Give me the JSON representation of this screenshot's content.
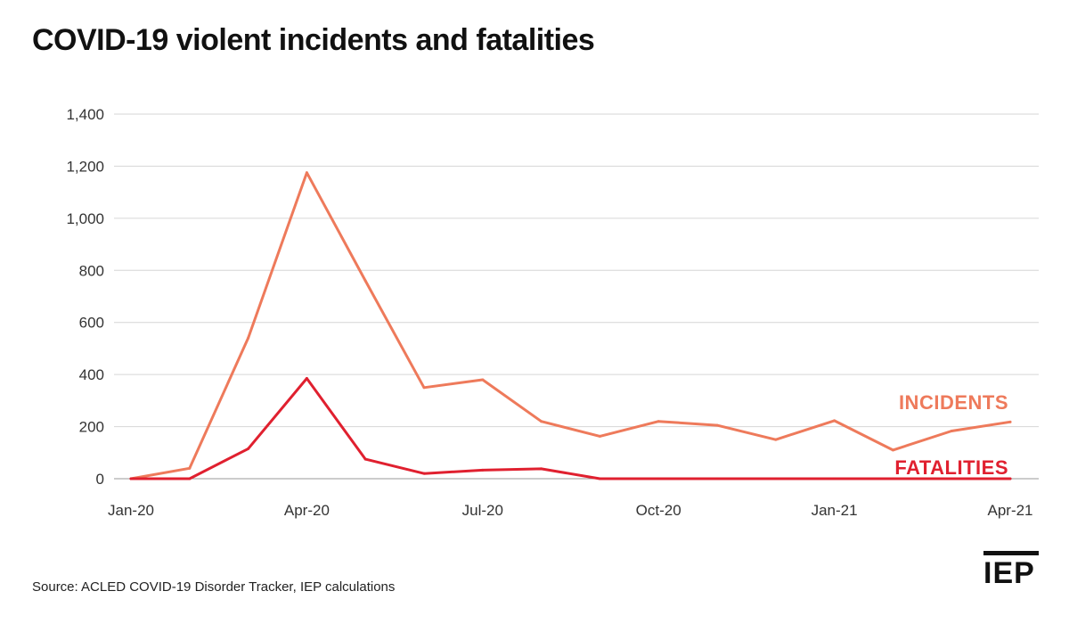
{
  "title": "COVID-19 violent incidents and fatalities",
  "source": "Source: ACLED COVID-19 Disorder Tracker, IEP calculations",
  "logo": "IEP",
  "chart_data": {
    "type": "line",
    "title": "COVID-19 violent incidents and fatalities",
    "xlabel": "",
    "ylabel": "",
    "ylim": [
      0,
      1400
    ],
    "yticks": [
      0,
      200,
      400,
      600,
      800,
      1000,
      1200,
      1400
    ],
    "ytick_labels": [
      "0",
      "200",
      "400",
      "600",
      "800",
      "1,000",
      "1,200",
      "1,400"
    ],
    "x": [
      "Jan-20",
      "Feb-20",
      "Mar-20",
      "Apr-20",
      "May-20",
      "Jun-20",
      "Jul-20",
      "Aug-20",
      "Sep-20",
      "Oct-20",
      "Nov-20",
      "Dec-20",
      "Jan-21",
      "Feb-21",
      "Mar-21",
      "Apr-21"
    ],
    "xtick_labels": [
      "Jan-20",
      "Apr-20",
      "Jul-20",
      "Oct-20",
      "Jan-21",
      "Apr-21"
    ],
    "xtick_indices": [
      0,
      3,
      6,
      9,
      12,
      15
    ],
    "grid": true,
    "legend": "inline labels at right end of lines",
    "series": [
      {
        "name": "INCIDENTS",
        "color": "#EE7A5B",
        "values": [
          0,
          40,
          540,
          1175,
          760,
          350,
          380,
          220,
          163,
          220,
          205,
          150,
          223,
          110,
          183,
          218
        ]
      },
      {
        "name": "FATALITIES",
        "color": "#E0202F",
        "values": [
          0,
          0,
          115,
          385,
          75,
          20,
          33,
          38,
          0,
          0,
          0,
          0,
          0,
          0,
          0,
          0
        ]
      }
    ]
  }
}
